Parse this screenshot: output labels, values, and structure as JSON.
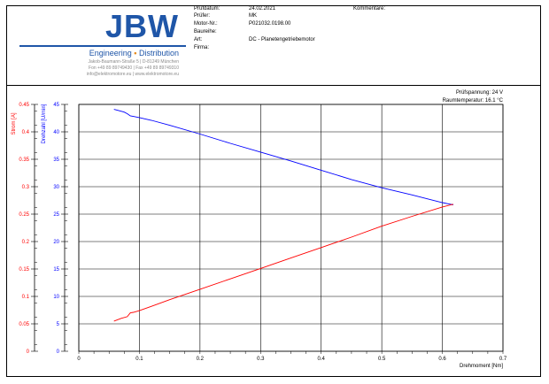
{
  "header": {
    "logo": {
      "brand": "JBW",
      "tagline_left": "Engineering",
      "tagline_dot": "•",
      "tagline_right": "Distribution",
      "address_line1": "Jakob-Baumann-Straße 5 | D-81249 München",
      "address_line2": "Fon +49 89 89749430 | Fax +49 89 89749310",
      "address_line3": "info@elektromotore.eu | www.elektromotore.eu"
    },
    "fields": [
      {
        "label": "Prüfdatum:",
        "value": "24.02.2021"
      },
      {
        "label": "Prüfer:",
        "value": "MK"
      },
      {
        "label": "Motor-Nr.:",
        "value": "P021032.0198.00"
      },
      {
        "label": "Baureihe:",
        "value": ""
      },
      {
        "label": "Art:",
        "value": "DC - Planetengetriebemotor"
      },
      {
        "label": "Firma:",
        "value": ""
      }
    ],
    "comments_label": "Kommentare:",
    "comments_value": ""
  },
  "chart_data": {
    "type": "line",
    "title": "",
    "notes": [
      "Prüfspannung: 24 V",
      "Raumtemperatur: 16.1 °C"
    ],
    "xlabel": "Drehmoment [Nm]",
    "xlim": [
      0,
      0.7
    ],
    "x_ticks": [
      "0",
      "0.1",
      "0.2",
      "0.3",
      "0.4",
      "0.5",
      "0.6",
      "0.7"
    ],
    "grid": true,
    "axes": [
      {
        "label": "Strom [A]",
        "color": "#ff0000",
        "lim": [
          0,
          0.45
        ],
        "ticks": [
          "0",
          "0.05",
          "0.1",
          "0.15",
          "0.2",
          "0.25",
          "0.3",
          "0.35",
          "0.4",
          "0.45"
        ]
      },
      {
        "label": "Drehzahl [U/min]",
        "color": "#0000ff",
        "lim": [
          0,
          45
        ],
        "ticks": [
          "0",
          "5",
          "10",
          "15",
          "20",
          "25",
          "30",
          "35",
          "40",
          "45"
        ]
      }
    ],
    "series": [
      {
        "axis": 1,
        "color": "#0000ff",
        "x": [
          0.058,
          0.065,
          0.075,
          0.08,
          0.085,
          0.09,
          0.1,
          0.12,
          0.15,
          0.2,
          0.25,
          0.3,
          0.35,
          0.4,
          0.45,
          0.5,
          0.55,
          0.6,
          0.618
        ],
        "y": [
          44.1,
          43.9,
          43.6,
          43.3,
          42.9,
          42.8,
          42.6,
          42.1,
          41.2,
          39.6,
          37.9,
          36.3,
          34.7,
          33.0,
          31.3,
          29.8,
          28.5,
          27.1,
          26.7
        ]
      },
      {
        "axis": 0,
        "color": "#ff0000",
        "x": [
          0.058,
          0.07,
          0.08,
          0.085,
          0.09,
          0.1,
          0.12,
          0.15,
          0.2,
          0.25,
          0.3,
          0.35,
          0.4,
          0.45,
          0.5,
          0.55,
          0.6,
          0.618
        ],
        "y": [
          0.055,
          0.06,
          0.063,
          0.07,
          0.071,
          0.074,
          0.082,
          0.094,
          0.113,
          0.132,
          0.151,
          0.17,
          0.189,
          0.208,
          0.228,
          0.246,
          0.263,
          0.268
        ]
      }
    ]
  }
}
